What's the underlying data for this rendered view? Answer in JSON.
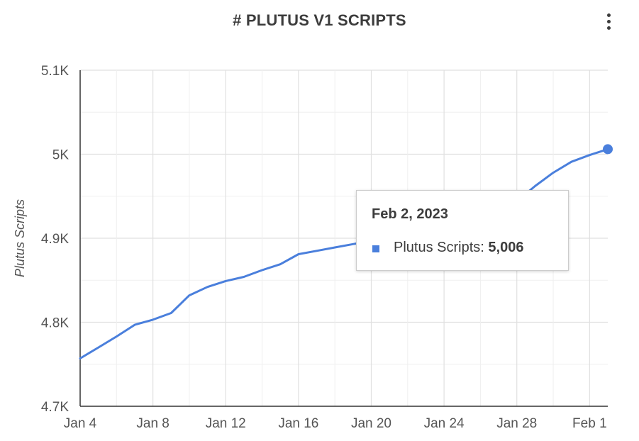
{
  "title": "# PLUTUS V1 SCRIPTS",
  "menu_icon": "more-vert-icon",
  "chart_data": {
    "type": "line",
    "title": "# PLUTUS V1 SCRIPTS",
    "xlabel": "",
    "ylabel": "Plutus Scripts",
    "ylim": [
      4700,
      5100
    ],
    "y_ticks": [
      "4.7K",
      "4.8K",
      "4.9K",
      "5K",
      "5.1K"
    ],
    "x_ticks": [
      "Jan 4",
      "Jan 8",
      "Jan 12",
      "Jan 16",
      "Jan 20",
      "Jan 24",
      "Jan 28",
      "Feb 1"
    ],
    "grid": true,
    "legend": "none",
    "color": "#4a7fdc",
    "series": [
      {
        "name": "Plutus Scripts",
        "x": [
          "2023-01-04",
          "2023-01-05",
          "2023-01-06",
          "2023-01-07",
          "2023-01-08",
          "2023-01-09",
          "2023-01-10",
          "2023-01-11",
          "2023-01-12",
          "2023-01-13",
          "2023-01-14",
          "2023-01-15",
          "2023-01-16",
          "2023-01-17",
          "2023-01-18",
          "2023-01-19",
          "2023-01-20",
          "2023-01-21",
          "2023-01-22",
          "2023-01-23",
          "2023-01-24",
          "2023-01-25",
          "2023-01-26",
          "2023-01-27",
          "2023-01-28",
          "2023-01-29",
          "2023-01-30",
          "2023-01-31",
          "2023-02-01",
          "2023-02-02"
        ],
        "values": [
          4757,
          4770,
          4783,
          4797,
          4803,
          4811,
          4832,
          4842,
          4849,
          4854,
          4862,
          4869,
          4881,
          4885,
          4889,
          4893,
          4897,
          4901,
          4906,
          4911,
          4917,
          4923,
          4930,
          4937,
          4944,
          4962,
          4978,
          4991,
          4999,
          5006
        ]
      }
    ],
    "highlight": {
      "date_label": "Feb 2, 2023",
      "series_label": "Plutus Scripts:",
      "value_label": "5,006"
    }
  }
}
